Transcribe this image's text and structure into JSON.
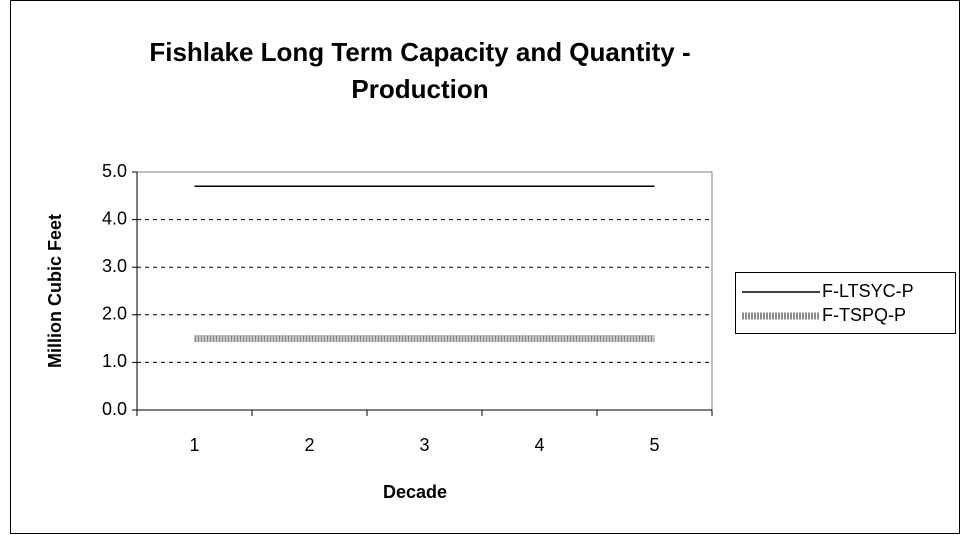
{
  "chart_data": {
    "type": "line",
    "title": "Fishlake Long Term Capacity and Quantity - Production",
    "x_label": "Decade",
    "y_label": "Million Cubic Feet",
    "categories": [
      "1",
      "2",
      "3",
      "4",
      "5"
    ],
    "series": [
      {
        "name": "F-LTSYC-P",
        "color": "#000000",
        "values": [
          4.7,
          4.7,
          4.7,
          4.7,
          4.7
        ]
      },
      {
        "name": "F-TSPQ-P",
        "color": "#8c8c8c",
        "values": [
          1.5,
          1.5,
          1.5,
          1.5,
          1.5
        ]
      }
    ],
    "ylim": [
      0,
      5
    ],
    "yticks": [
      {
        "value": 0,
        "label": "0.0"
      },
      {
        "value": 1,
        "label": "1.0"
      },
      {
        "value": 2,
        "label": "2.0"
      },
      {
        "value": 3,
        "label": "3.0"
      },
      {
        "value": 4,
        "label": "4.0"
      },
      {
        "value": 5,
        "label": "5.0"
      }
    ],
    "grid": true,
    "legend": "right"
  }
}
